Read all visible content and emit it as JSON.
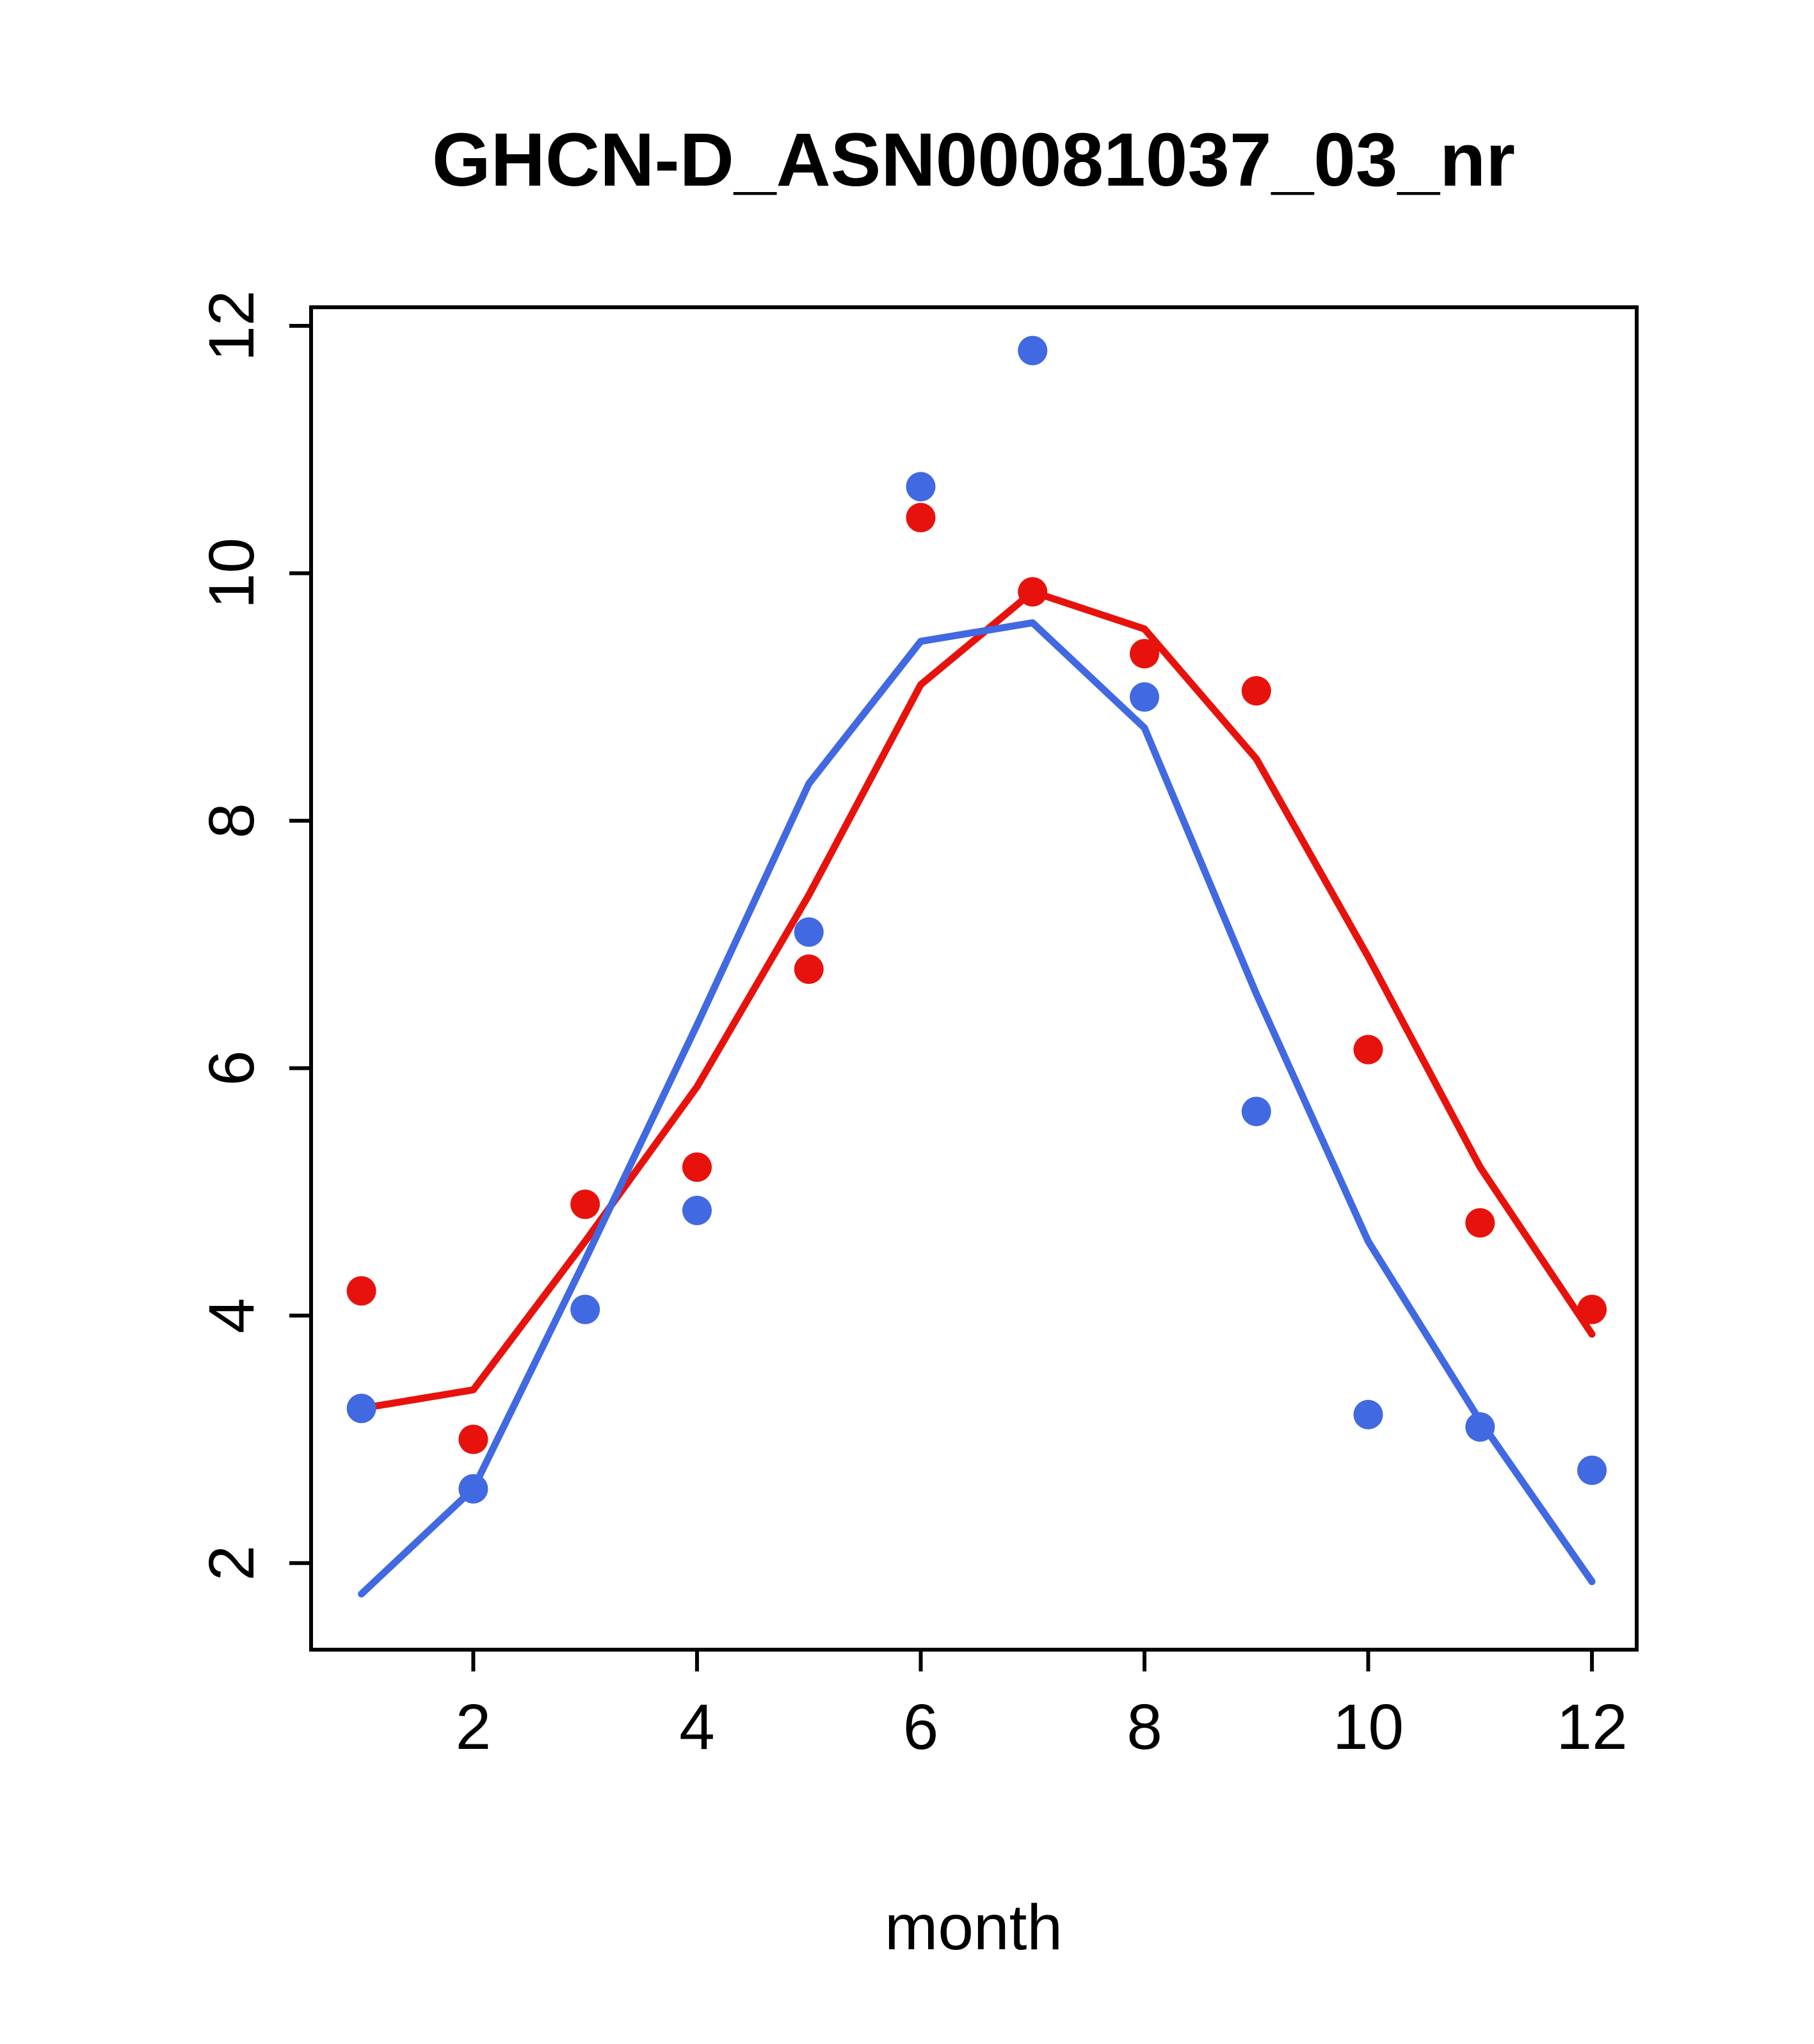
{
  "chart_data": {
    "type": "scatter",
    "title": "GHCN-D_ASN00081037_03_nr",
    "xlabel": "month",
    "ylabel": "",
    "x": [
      1,
      2,
      3,
      4,
      5,
      6,
      7,
      8,
      9,
      10,
      11,
      12
    ],
    "xticks": [
      2,
      4,
      6,
      8,
      10,
      12
    ],
    "yticks": [
      2,
      4,
      6,
      8,
      10,
      12
    ],
    "xlim": [
      0.55,
      12.4
    ],
    "ylim": [
      1.3,
      12.15
    ],
    "grid": false,
    "legend": "none",
    "colors": {
      "red": "#e8120c",
      "blue": "#4169e1",
      "axis": "#000000"
    },
    "series": [
      {
        "name": "red-line-fit",
        "type": "line",
        "color": "#e8120c",
        "values": [
          3.25,
          3.4,
          4.6,
          5.85,
          7.4,
          9.1,
          9.85,
          9.55,
          8.5,
          6.9,
          5.2,
          3.85
        ]
      },
      {
        "name": "blue-line-fit",
        "type": "line",
        "color": "#4169e1",
        "values": [
          1.75,
          2.6,
          4.45,
          6.35,
          8.3,
          9.45,
          9.6,
          8.75,
          6.6,
          4.6,
          3.15,
          1.85
        ]
      },
      {
        "name": "red-points",
        "type": "points",
        "color": "#e8120c",
        "values": [
          4.2,
          3.0,
          4.9,
          5.2,
          6.8,
          10.45,
          9.85,
          9.35,
          9.05,
          6.15,
          4.75,
          4.05
        ]
      },
      {
        "name": "blue-points",
        "type": "points",
        "color": "#4169e1",
        "values": [
          3.25,
          2.6,
          4.05,
          4.85,
          7.1,
          10.7,
          11.8,
          9.0,
          5.65,
          3.2,
          3.1,
          2.75
        ]
      }
    ]
  }
}
